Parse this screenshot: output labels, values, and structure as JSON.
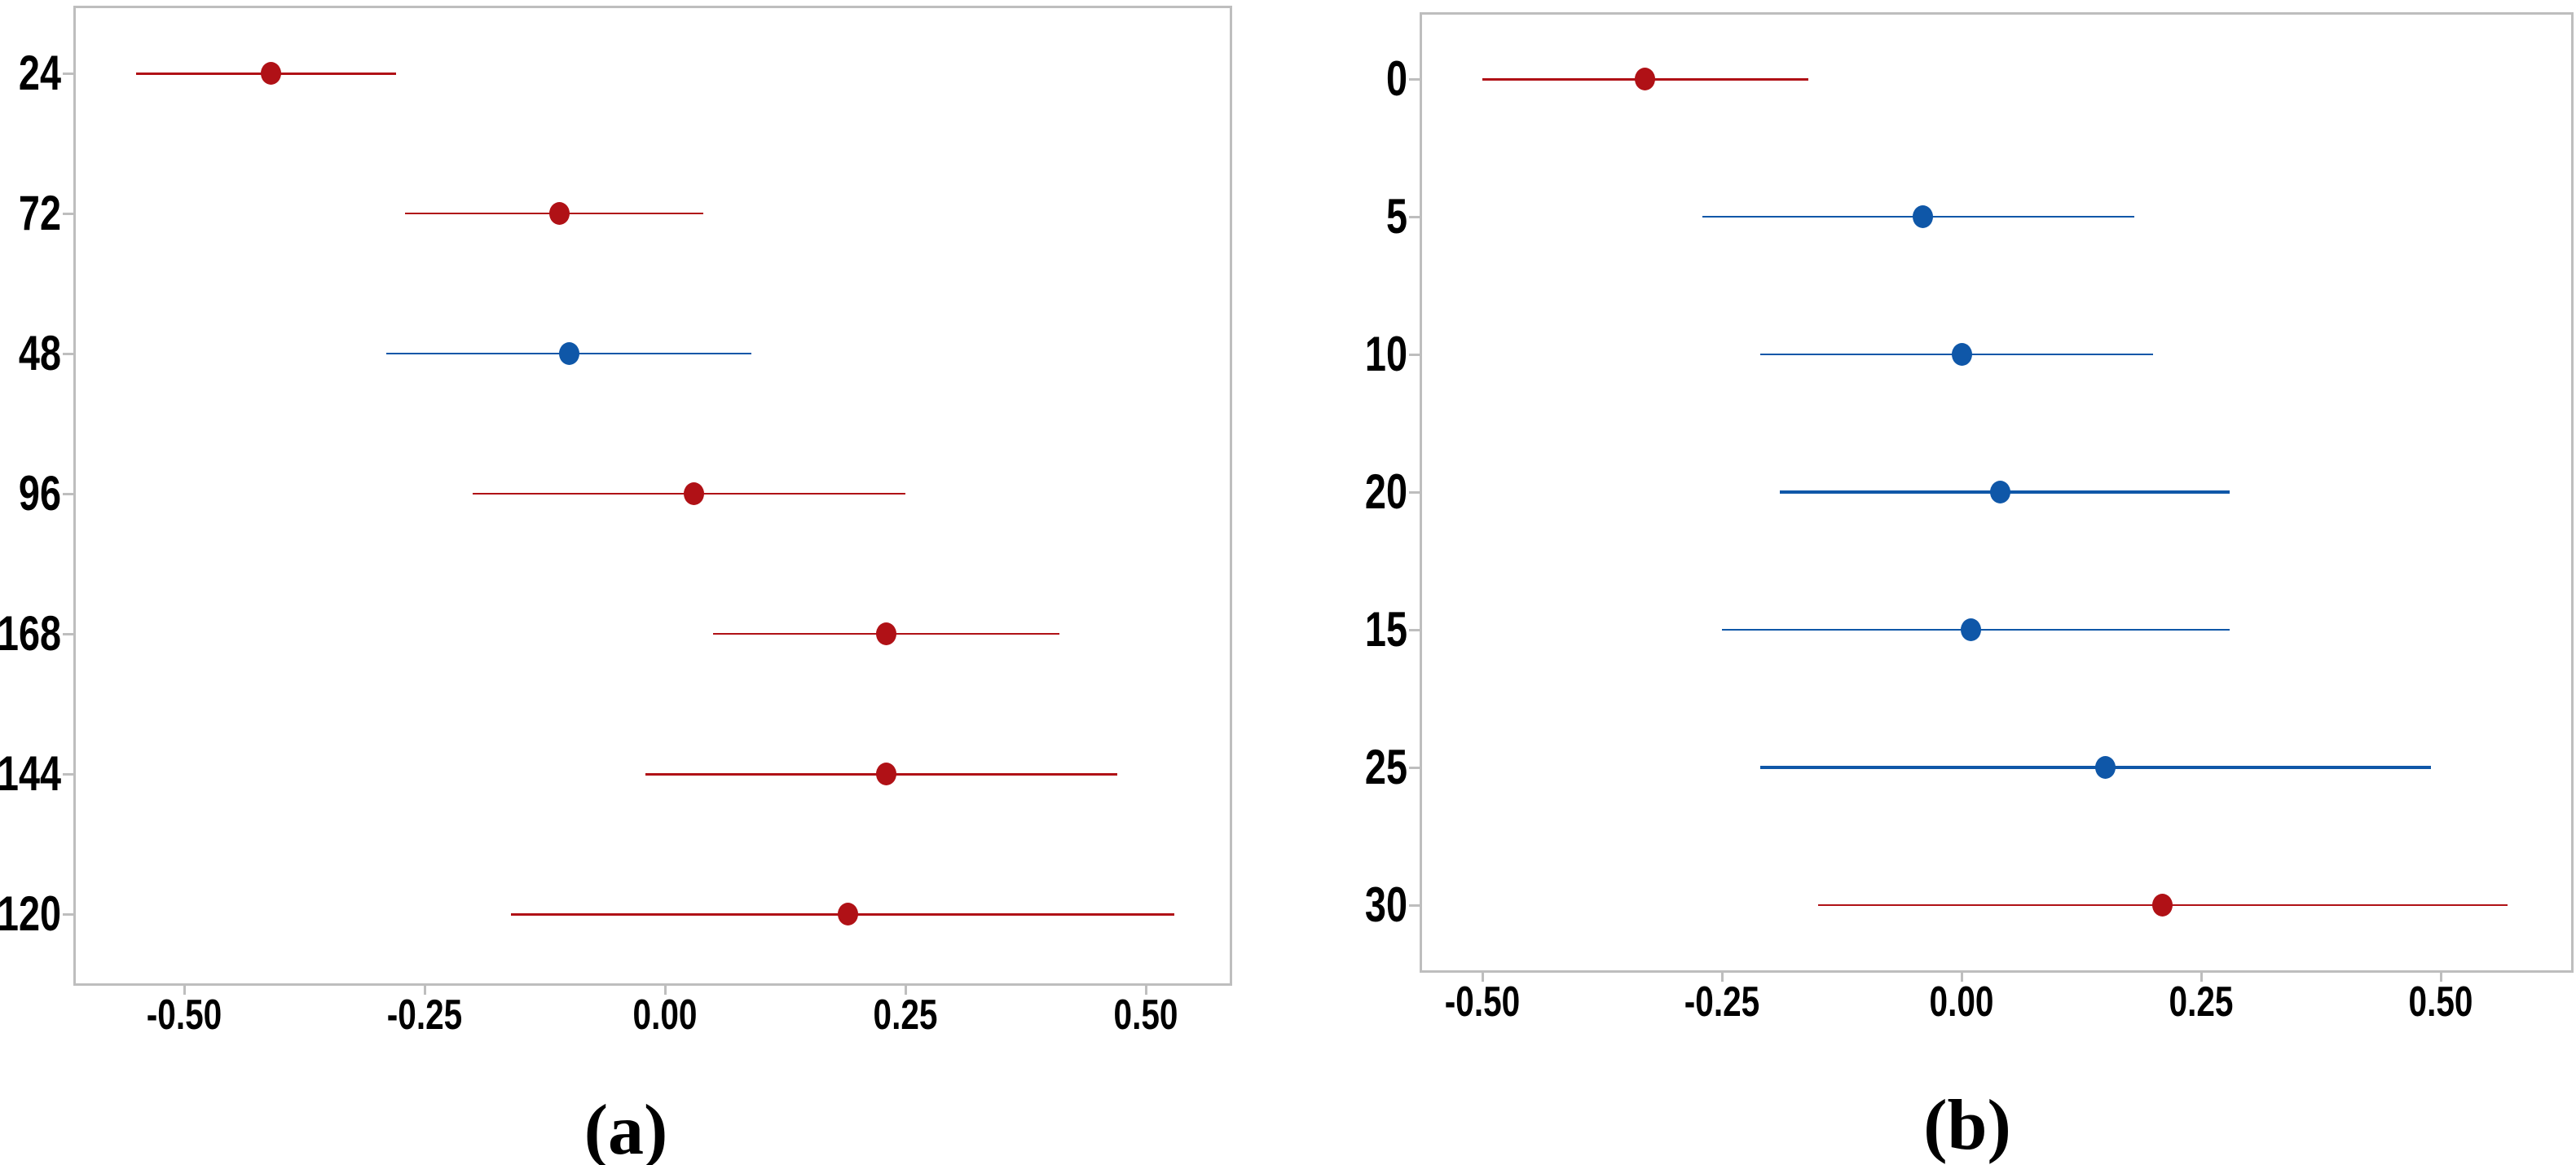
{
  "colors": {
    "red": "#b01116",
    "blue": "#0f57a8",
    "frame_gray": "#bebebe",
    "label_black": "#000000",
    "background": "#ffffff"
  },
  "chart_data": [
    {
      "type": "scatter",
      "subtype": "interval-plot-points-with-ci",
      "panel_label": "(a)",
      "title": "",
      "xlabel": "",
      "ylabel": "",
      "grid": false,
      "legend": false,
      "xlim": [
        -0.615,
        0.59
      ],
      "x_tick_labels": [
        "-0.50",
        "-0.25",
        "0.00",
        "0.25",
        "0.50"
      ],
      "x_tick_values": [
        -0.5,
        -0.25,
        0,
        0.25,
        0.5
      ],
      "categories": [
        "24",
        "72",
        "48",
        "96",
        "168",
        "144",
        "120"
      ],
      "points": [
        {
          "category": "24",
          "value": -0.41,
          "ci_low": -0.55,
          "ci_high": -0.28,
          "color": "red",
          "line_weight": 3
        },
        {
          "category": "72",
          "value": -0.11,
          "ci_low": -0.27,
          "ci_high": 0.04,
          "color": "red",
          "line_weight": 2.6
        },
        {
          "category": "48",
          "value": -0.1,
          "ci_low": -0.29,
          "ci_high": 0.09,
          "color": "blue",
          "line_weight": 2.4
        },
        {
          "category": "96",
          "value": 0.03,
          "ci_low": -0.2,
          "ci_high": 0.25,
          "color": "red",
          "line_weight": 2.4
        },
        {
          "category": "168",
          "value": 0.23,
          "ci_low": 0.05,
          "ci_high": 0.41,
          "color": "red",
          "line_weight": 2.8
        },
        {
          "category": "144",
          "value": 0.23,
          "ci_low": -0.02,
          "ci_high": 0.47,
          "color": "red",
          "line_weight": 3
        },
        {
          "category": "120",
          "value": 0.19,
          "ci_low": -0.16,
          "ci_high": 0.53,
          "color": "red",
          "line_weight": 3
        }
      ]
    },
    {
      "type": "scatter",
      "subtype": "interval-plot-points-with-ci",
      "panel_label": "(b)",
      "title": "",
      "xlabel": "",
      "ylabel": "",
      "grid": false,
      "legend": false,
      "xlim": [
        -0.565,
        0.639
      ],
      "x_tick_labels": [
        "-0.50",
        "-0.25",
        "0.00",
        "0.25",
        "0.50"
      ],
      "x_tick_values": [
        -0.5,
        -0.25,
        0,
        0.25,
        0.5
      ],
      "categories": [
        "0",
        "5",
        "10",
        "20",
        "15",
        "25",
        "30"
      ],
      "points": [
        {
          "category": "0",
          "value": -0.33,
          "ci_low": -0.5,
          "ci_high": -0.16,
          "color": "red",
          "line_weight": 3
        },
        {
          "category": "5",
          "value": -0.04,
          "ci_low": -0.27,
          "ci_high": 0.18,
          "color": "blue",
          "line_weight": 2.4
        },
        {
          "category": "10",
          "value": 0.0,
          "ci_low": -0.21,
          "ci_high": 0.2,
          "color": "blue",
          "line_weight": 2.4
        },
        {
          "category": "20",
          "value": 0.04,
          "ci_low": -0.19,
          "ci_high": 0.28,
          "color": "blue",
          "line_weight": 3.4
        },
        {
          "category": "15",
          "value": 0.01,
          "ci_low": -0.25,
          "ci_high": 0.28,
          "color": "blue",
          "line_weight": 2
        },
        {
          "category": "25",
          "value": 0.15,
          "ci_low": -0.21,
          "ci_high": 0.49,
          "color": "blue",
          "line_weight": 3.4
        },
        {
          "category": "30",
          "value": 0.21,
          "ci_low": -0.15,
          "ci_high": 0.57,
          "color": "red",
          "line_weight": 2.4
        }
      ]
    }
  ]
}
